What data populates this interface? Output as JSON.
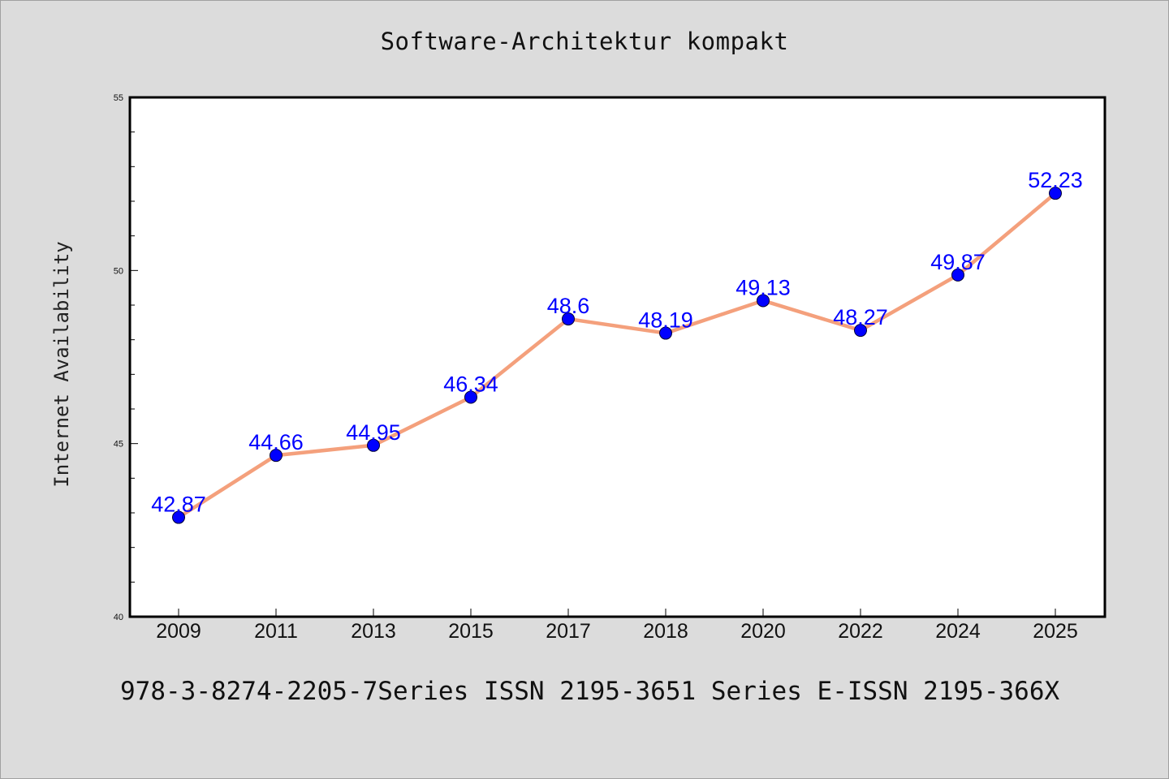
{
  "chart_data": {
    "type": "line",
    "title": "Software-Architektur kompakt",
    "xlabel": "",
    "ylabel": "Internet Availability",
    "categories": [
      "2009",
      "2011",
      "2013",
      "2015",
      "2017",
      "2018",
      "2020",
      "2022",
      "2024",
      "2025"
    ],
    "series": [
      {
        "values": [
          42.87,
          44.66,
          44.95,
          46.34,
          48.6,
          48.19,
          49.13,
          48.27,
          49.87,
          52.23
        ],
        "data_labels": [
          "42.87",
          "44.66",
          "44.95",
          "46.34",
          "48.6",
          "48.19",
          "49.13",
          "48.27",
          "49.87",
          "52.23"
        ]
      }
    ],
    "ylim": [
      40,
      55
    ],
    "yticks": [
      "40",
      "45",
      "50",
      "55"
    ],
    "grid": false,
    "line_color": "#f4a07c",
    "marker_color": "#0000ff",
    "label_color": "#0000ff",
    "background_color": "#dcdcdc",
    "plot_background": "#ffffff"
  },
  "footer": {
    "text": "978-3-8274-2205-7Series ISSN 2195-3651 Series E-ISSN 2195-366X"
  }
}
